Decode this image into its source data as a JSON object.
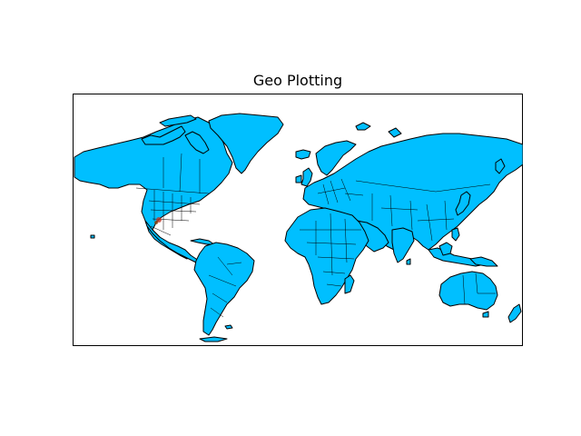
{
  "figure": {
    "title": "Geo Plotting"
  },
  "map": {
    "projection": "mercator",
    "land_color": "#00bfff",
    "coastline_color": "#000000",
    "border_color": "#000000",
    "background_color": "#ffffff",
    "frame_color": "#000000",
    "marker_color": "#c0392b"
  }
}
